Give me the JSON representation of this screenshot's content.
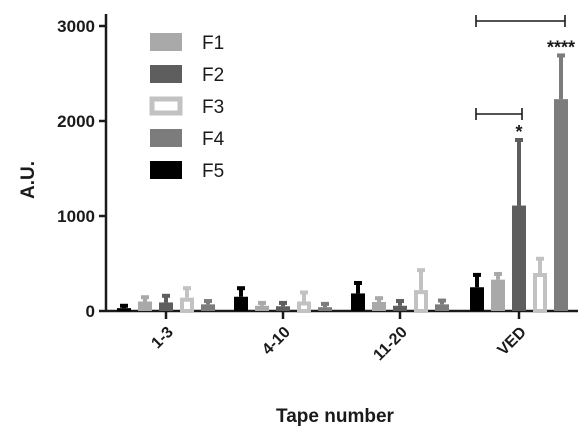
{
  "chart_data": {
    "type": "bar",
    "title": "",
    "xlabel": "Tape number",
    "ylabel": "A.U.",
    "ylim": [
      0,
      3000
    ],
    "yticks": [
      "0",
      "1000",
      "2000",
      "3000"
    ],
    "categories": [
      "1-3",
      "4-10",
      "11-20",
      "VED"
    ],
    "legend_placement": "top-left",
    "series": [
      {
        "name": "F5",
        "color": "#000000",
        "style": "solid",
        "values": [
          30,
          150,
          185,
          250
        ],
        "errors": [
          25,
          90,
          110,
          130
        ]
      },
      {
        "name": "F1",
        "color": "#a9a9a9",
        "style": "solid",
        "values": [
          100,
          55,
          95,
          330
        ],
        "errors": [
          45,
          30,
          40,
          60
        ]
      },
      {
        "name": "F2",
        "color": "#5e5e5e",
        "style": "solid",
        "values": [
          90,
          50,
          55,
          1110
        ],
        "errors": [
          70,
          35,
          50,
          690
        ]
      },
      {
        "name": "F3",
        "color": "#c2c2c2",
        "style": "hollow",
        "values": [
          140,
          100,
          220,
          400
        ],
        "errors": [
          100,
          95,
          210,
          150
        ]
      },
      {
        "name": "F4",
        "color": "#7c7c7c",
        "style": "solid",
        "values": [
          70,
          40,
          70,
          2230
        ],
        "errors": [
          35,
          35,
          40,
          460
        ]
      }
    ],
    "legend": [
      "F1",
      "F2",
      "F3",
      "F4",
      "F5"
    ],
    "annotations": [
      {
        "text": "*",
        "category": "VED",
        "series": "F2"
      },
      {
        "text": "****",
        "category": "VED",
        "series": "F4"
      }
    ]
  }
}
